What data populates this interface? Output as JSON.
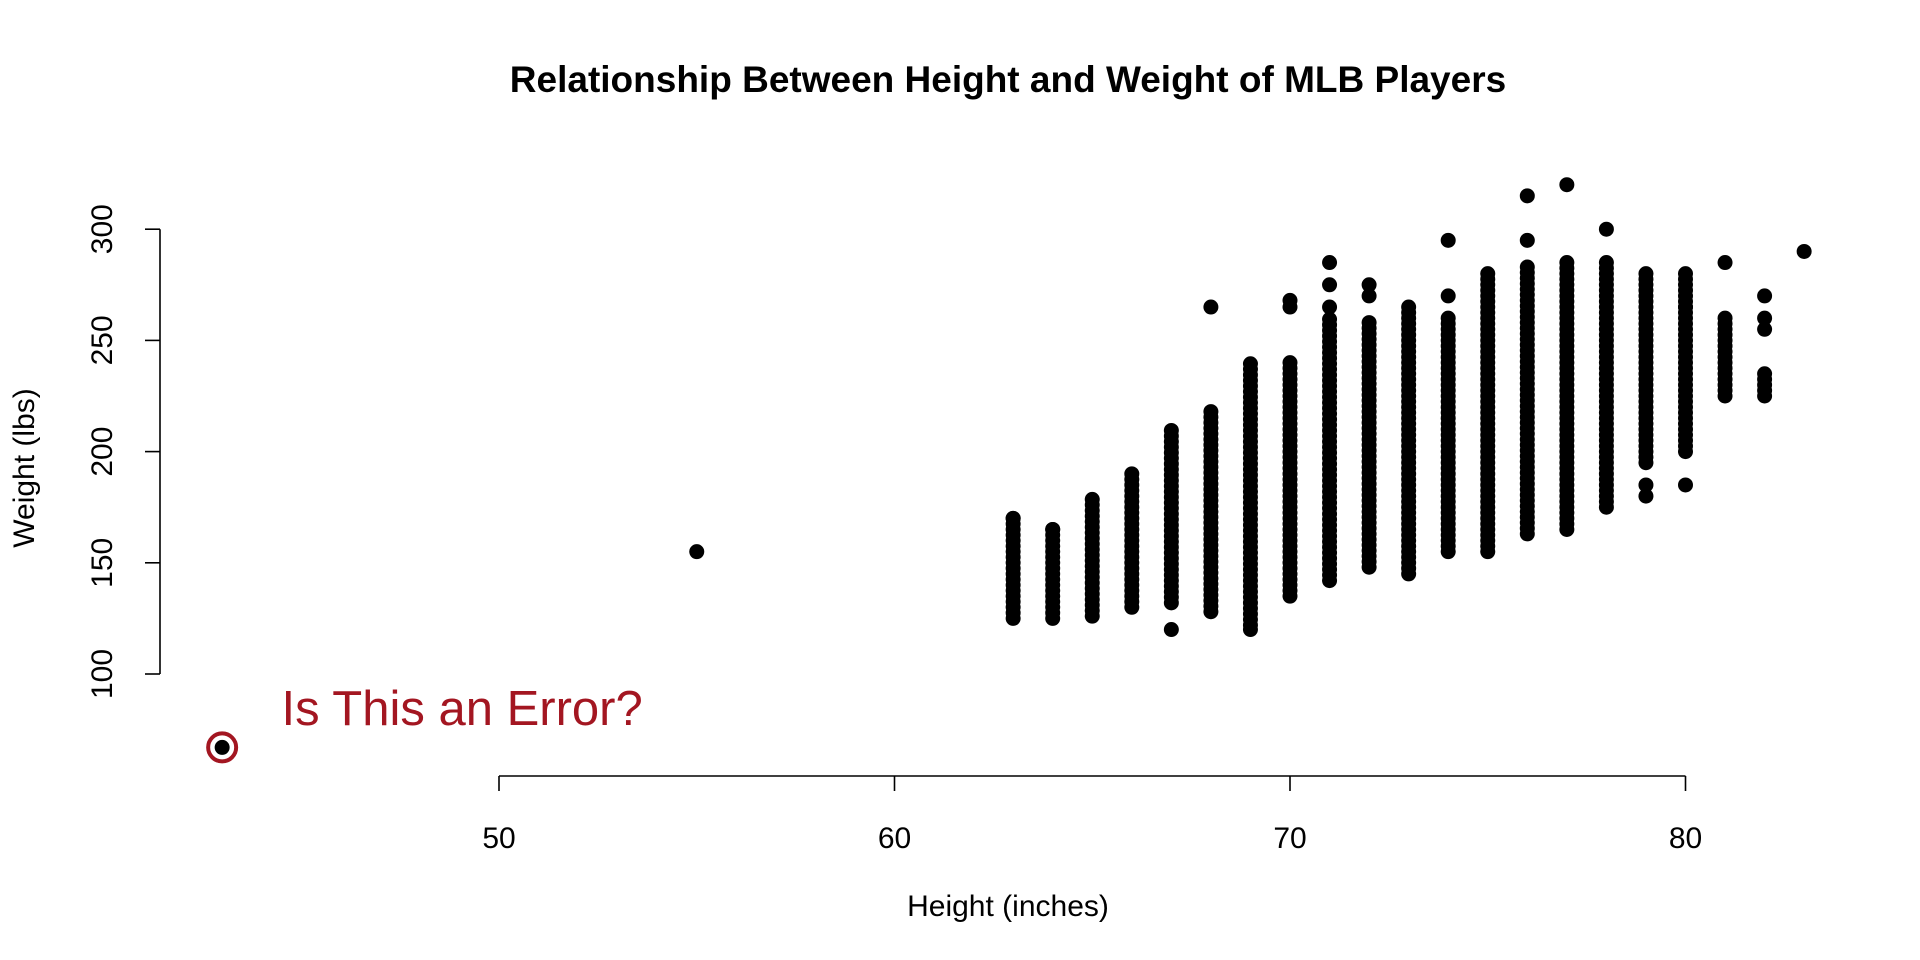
{
  "chart_data": {
    "type": "scatter",
    "title": "Relationship Between Height and Weight of MLB Players",
    "xlabel": "Height (inches)",
    "ylabel": "Weight (lbs)",
    "xlim": [
      43,
      83
    ],
    "ylim": [
      65,
      320
    ],
    "x_ticks": [
      50,
      60,
      70,
      80
    ],
    "y_ticks": [
      100,
      150,
      200,
      250,
      300
    ],
    "x_tick_labels": [
      "50",
      "60",
      "70",
      "80"
    ],
    "y_tick_labels": [
      "100",
      "150",
      "200",
      "250",
      "300"
    ],
    "grid": false,
    "legend": "none",
    "point_color": "#000000",
    "highlight_color": "#A31621",
    "groups": [
      {
        "x": 55,
        "ymin": 155,
        "ymax": 155
      },
      {
        "x": 63,
        "ymin": 125,
        "ymax": 170
      },
      {
        "x": 64,
        "ymin": 125,
        "ymax": 165
      },
      {
        "x": 65,
        "ymin": 126,
        "ymax": 179
      },
      {
        "x": 66,
        "ymin": 130,
        "ymax": 190
      },
      {
        "x": 67,
        "ymin": 132,
        "ymax": 210
      },
      {
        "x": 68,
        "ymin": 128,
        "ymax": 220
      },
      {
        "x": 69,
        "ymin": 122,
        "ymax": 240
      },
      {
        "x": 70,
        "ymin": 135,
        "ymax": 240
      },
      {
        "x": 71,
        "ymin": 142,
        "ymax": 260
      },
      {
        "x": 72,
        "ymin": 148,
        "ymax": 260
      },
      {
        "x": 73,
        "ymin": 145,
        "ymax": 265
      },
      {
        "x": 74,
        "ymin": 155,
        "ymax": 260
      },
      {
        "x": 75,
        "ymin": 155,
        "ymax": 280
      },
      {
        "x": 76,
        "ymin": 163,
        "ymax": 285
      },
      {
        "x": 77,
        "ymin": 165,
        "ymax": 285
      },
      {
        "x": 78,
        "ymin": 175,
        "ymax": 285
      },
      {
        "x": 79,
        "ymin": 195,
        "ymax": 282
      },
      {
        "x": 80,
        "ymin": 200,
        "ymax": 280
      },
      {
        "x": 81,
        "ymin": 225,
        "ymax": 260
      },
      {
        "x": 82,
        "ymin": 225,
        "ymax": 235
      }
    ],
    "extra_points": [
      [
        63,
        170
      ],
      [
        64,
        165
      ],
      [
        67,
        120
      ],
      [
        68,
        265
      ],
      [
        69,
        120
      ],
      [
        70,
        268
      ],
      [
        70,
        265
      ],
      [
        71,
        285
      ],
      [
        71,
        275
      ],
      [
        71,
        265
      ],
      [
        72,
        275
      ],
      [
        72,
        270
      ],
      [
        74,
        295
      ],
      [
        74,
        270
      ],
      [
        76,
        315
      ],
      [
        76,
        295
      ],
      [
        77,
        320
      ],
      [
        78,
        300
      ],
      [
        79,
        185
      ],
      [
        79,
        180
      ],
      [
        80,
        185
      ],
      [
        80,
        265
      ],
      [
        81,
        285
      ],
      [
        82,
        270
      ],
      [
        82,
        260
      ],
      [
        82,
        255
      ],
      [
        83,
        290
      ]
    ],
    "highlighted_point": {
      "x": 43,
      "y": 67
    },
    "annotation": {
      "text": "Is This an Error?",
      "x": 44.5,
      "y": 77
    }
  }
}
